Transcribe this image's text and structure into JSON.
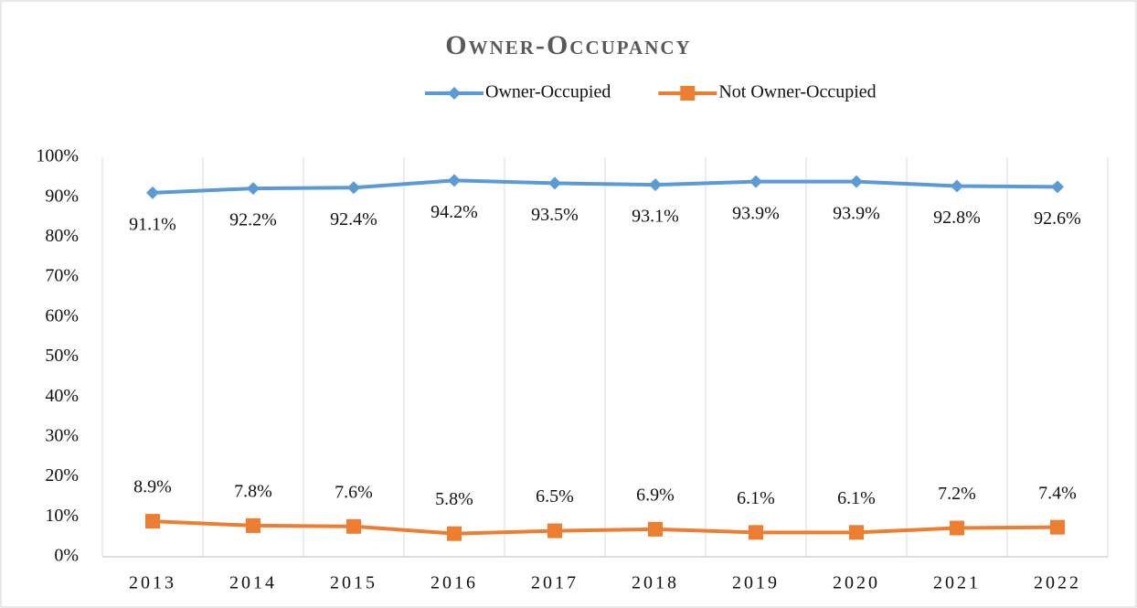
{
  "chart_data": {
    "type": "line",
    "title": "Owner-Occupancy",
    "categories": [
      "2013",
      "2014",
      "2015",
      "2016",
      "2017",
      "2018",
      "2019",
      "2020",
      "2021",
      "2022"
    ],
    "series": [
      {
        "name": "Owner-Occupied",
        "color": "#5b9bd5",
        "marker": "diamond",
        "label_position": "below",
        "values": [
          91.1,
          92.2,
          92.4,
          94.2,
          93.5,
          93.1,
          93.9,
          93.9,
          92.8,
          92.6
        ],
        "value_labels": [
          "91.1%",
          "92.2%",
          "92.4%",
          "94.2%",
          "93.5%",
          "93.1%",
          "93.9%",
          "93.9%",
          "92.8%",
          "92.6%"
        ]
      },
      {
        "name": "Not Owner-Occupied",
        "color": "#ed7d31",
        "marker": "square",
        "label_position": "above",
        "values": [
          8.9,
          7.8,
          7.6,
          5.8,
          6.5,
          6.9,
          6.1,
          6.1,
          7.2,
          7.4
        ],
        "value_labels": [
          "8.9%",
          "7.8%",
          "7.6%",
          "5.8%",
          "6.5%",
          "6.9%",
          "6.1%",
          "6.1%",
          "7.2%",
          "7.4%"
        ]
      }
    ],
    "ylim": [
      0,
      100
    ],
    "yticks": [
      {
        "value": 0,
        "label": "0%"
      },
      {
        "value": 10,
        "label": "10%"
      },
      {
        "value": 20,
        "label": "20%"
      },
      {
        "value": 30,
        "label": "30%"
      },
      {
        "value": 40,
        "label": "40%"
      },
      {
        "value": 50,
        "label": "50%"
      },
      {
        "value": 60,
        "label": "60%"
      },
      {
        "value": 70,
        "label": "70%"
      },
      {
        "value": 80,
        "label": "80%"
      },
      {
        "value": 90,
        "label": "90%"
      },
      {
        "value": 100,
        "label": "100%"
      }
    ],
    "legend": "top"
  }
}
